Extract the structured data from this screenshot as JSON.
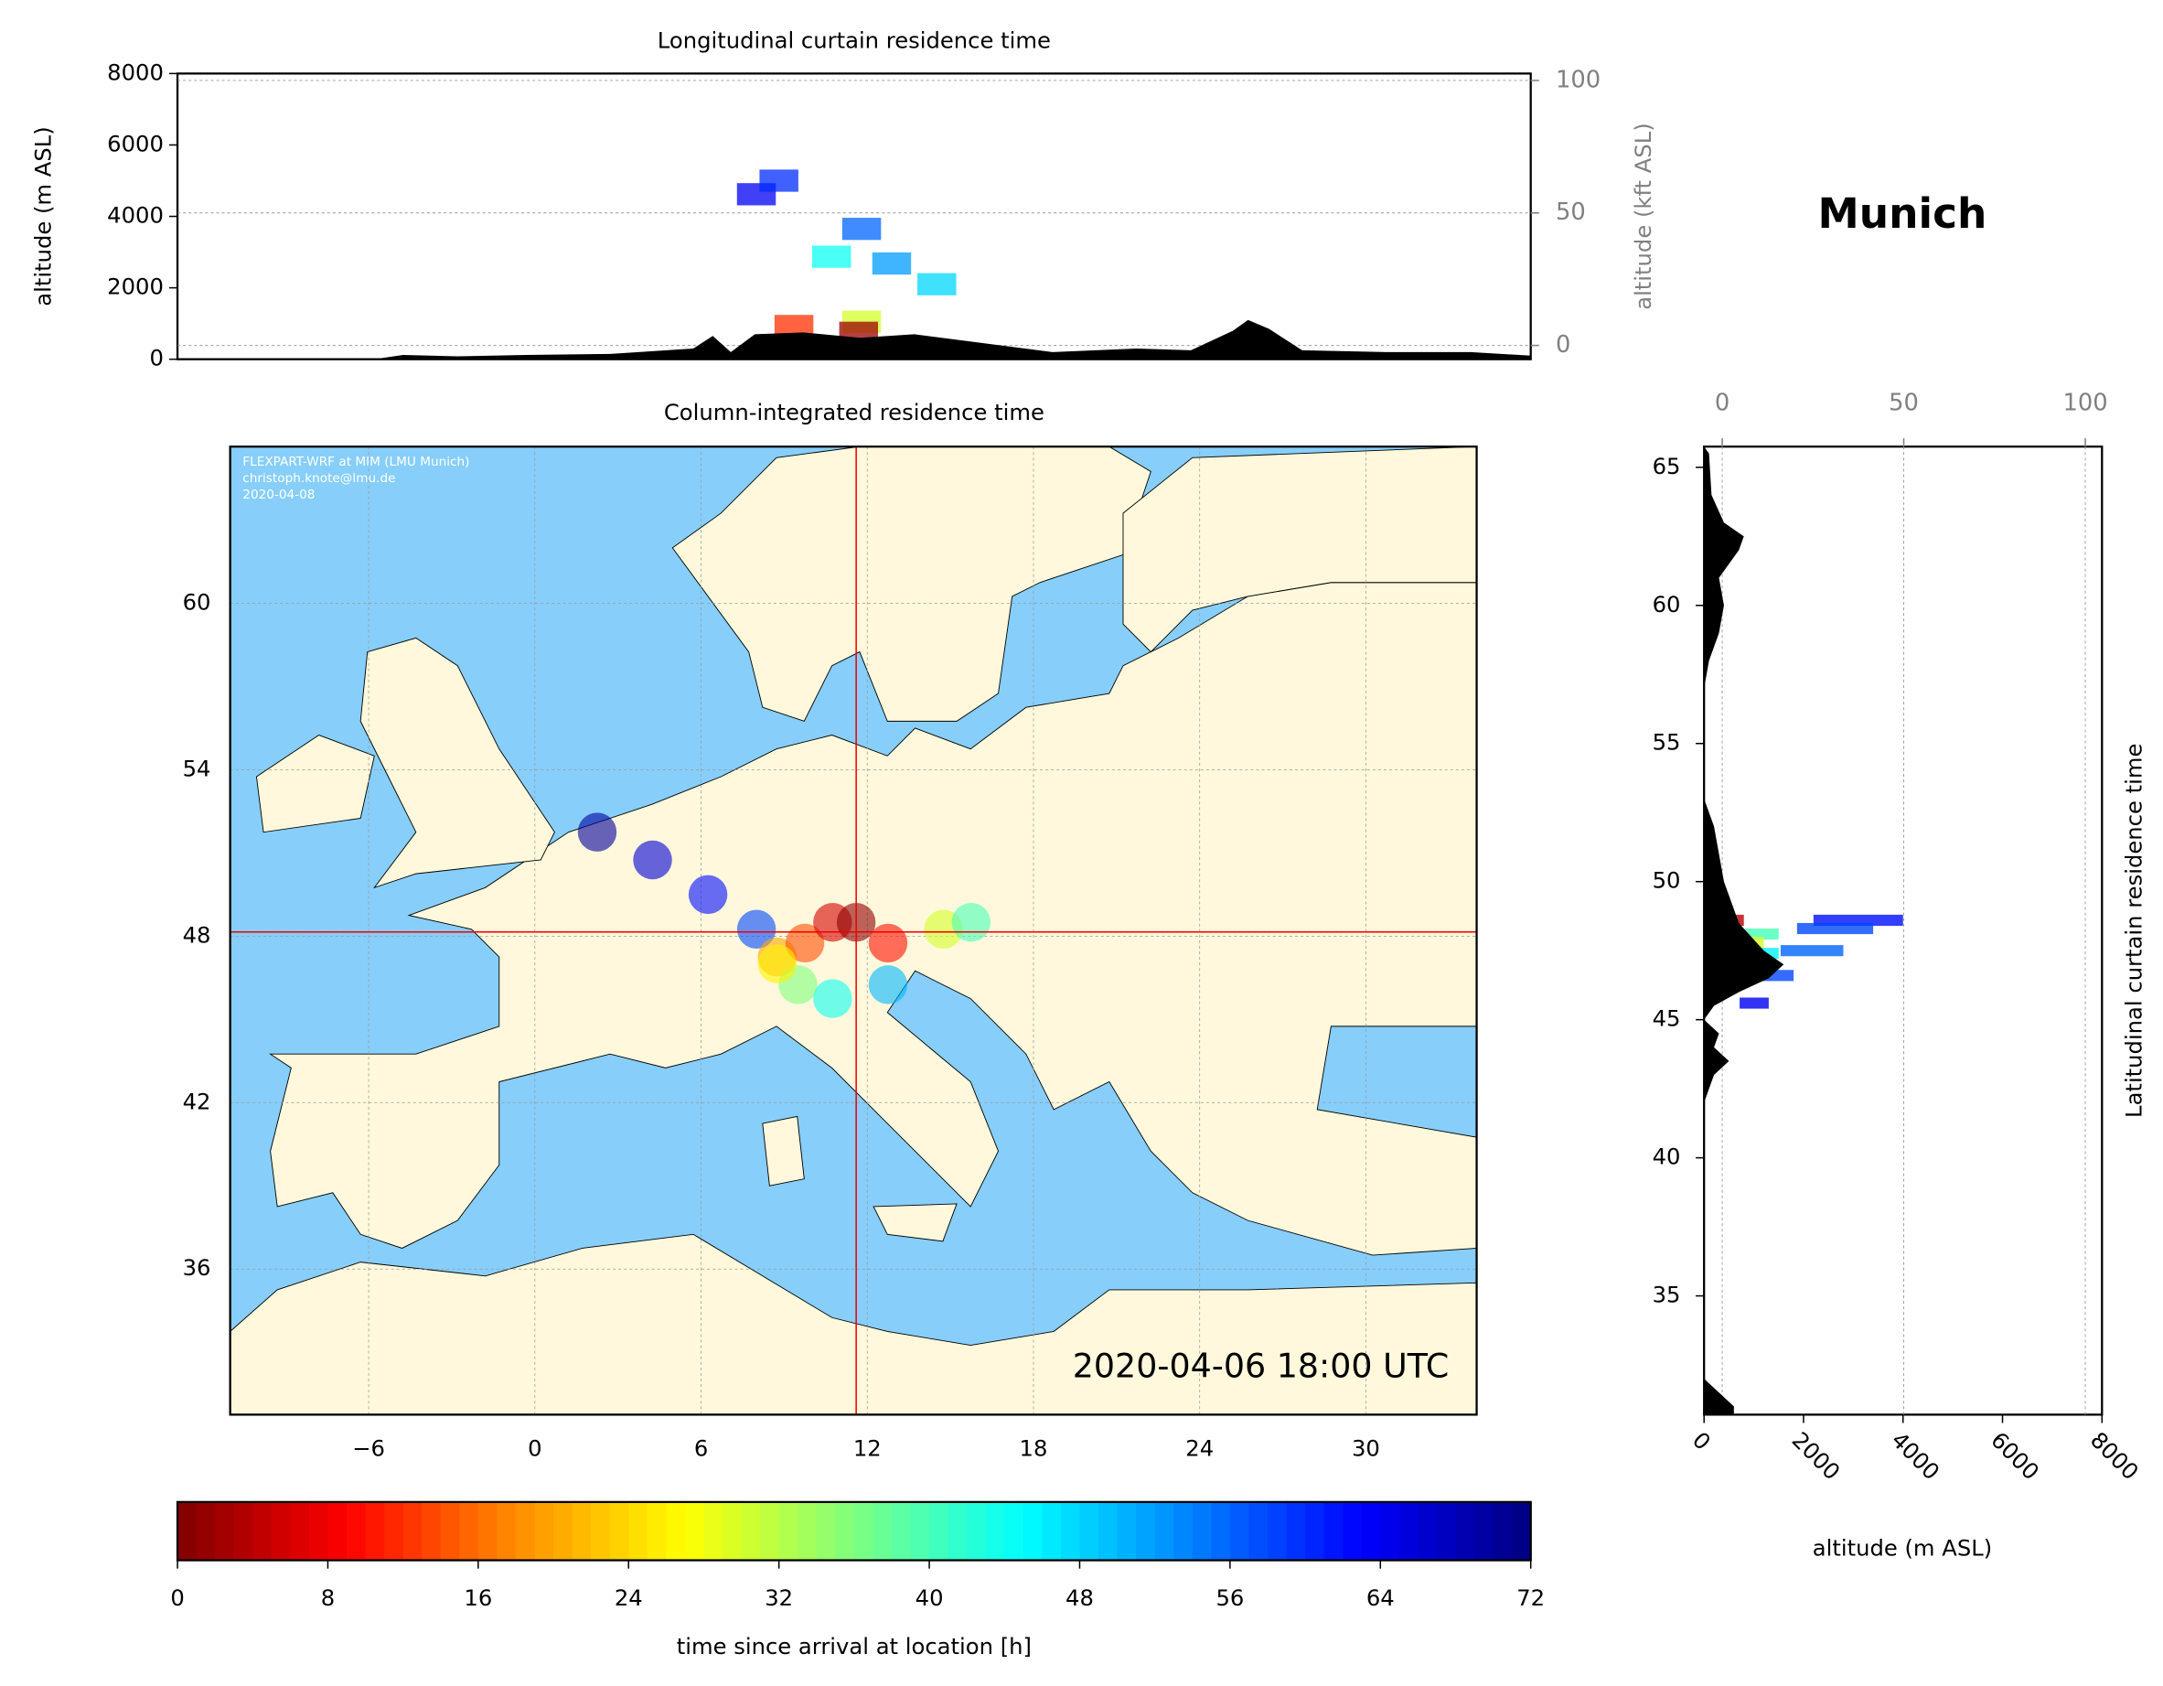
{
  "chart_data": [
    {
      "type": "lon-curtain",
      "title": "Longitudinal curtain residence time",
      "ylabel": "altitude (m ASL)",
      "y2label": "altitude (kft ASL)",
      "xlim": [
        -11,
        34
      ],
      "ylim": [
        0,
        8000
      ],
      "yticks": [
        0,
        2000,
        4000,
        6000,
        8000
      ],
      "y2lim": [
        -5.2,
        102.6
      ],
      "y2ticks": [
        0,
        50,
        100
      ],
      "grid": true,
      "terrain": {
        "x": [
          -11,
          -4.45,
          -3.5,
          -1.7,
          0.6,
          3.4,
          6.15,
          6.8,
          7.4,
          8.2,
          9.8,
          11.7,
          13.5,
          15.8,
          18.1,
          20.9,
          22.7,
          24.1,
          24.6,
          25.3,
          26.4,
          29.2,
          32,
          34
        ],
        "values": [
          0,
          0,
          120,
          80,
          120,
          150,
          300,
          650,
          200,
          700,
          750,
          600,
          700,
          450,
          200,
          300,
          250,
          800,
          1100,
          850,
          250,
          200,
          200,
          100
        ]
      },
      "plume": {
        "x": [
          8.25,
          9.0,
          11.75,
          12.75,
          14.25,
          10.75,
          11.75,
          9.5,
          11.65
        ],
        "values": [
          4620,
          5000,
          3650,
          2680,
          2100,
          2870,
          1050,
          930,
          740
        ],
        "hours": [
          64,
          60,
          56,
          52,
          48,
          44,
          30,
          12,
          2
        ]
      }
    },
    {
      "type": "map",
      "title": "Column-integrated residence time",
      "site": {
        "name": "Munich",
        "lon": 11.6,
        "lat": 48.15
      },
      "credits": [
        "FLEXPART-WRF at MIM (LMU Munich)",
        "christoph.knote@lmu.de",
        "2020-04-08"
      ],
      "timestamp": "2020-04-06 18:00 UTC",
      "xlim": [
        -11,
        34
      ],
      "ylim": [
        30.75,
        65.65
      ],
      "xticks": [
        {
          "value": -6,
          "label": "−6"
        },
        0,
        6,
        12,
        18,
        24,
        30
      ],
      "yticks": [
        36,
        42,
        48,
        54,
        60
      ],
      "grid": true,
      "plume": {
        "x": [
          2.25,
          4.25,
          6.25,
          8.0,
          8.75,
          9.75,
          10.75,
          11.6,
          12.75,
          14.75,
          15.75,
          9.5,
          10.75,
          12.75,
          8.75
        ],
        "values": [
          51.75,
          50.75,
          49.5,
          48.25,
          47.25,
          47.75,
          48.5,
          48.5,
          47.75,
          48.25,
          48.5,
          46.25,
          45.75,
          46.25,
          47.0
        ],
        "hours": [
          70,
          66,
          62,
          58,
          20,
          14,
          6,
          1,
          10,
          30,
          40,
          36,
          44,
          50,
          26
        ]
      }
    },
    {
      "type": "lat-curtain",
      "title": "Latitudinal curtain residence time",
      "xlabel": "altitude (m ASL)",
      "xlim": [
        0,
        8000
      ],
      "xticks": [
        0,
        2000,
        4000,
        6000,
        8000
      ],
      "x2lim": [
        -5,
        104.6
      ],
      "x2ticks": [
        0,
        50,
        100
      ],
      "ylim": [
        30.7,
        65.75
      ],
      "yticks": [
        35,
        40,
        45,
        50,
        55,
        60,
        65
      ],
      "grid": true,
      "terrain": {
        "y": [
          65.75,
          65.5,
          64,
          63,
          62.5,
          62,
          61,
          60,
          59,
          58,
          57,
          53,
          52,
          51,
          50,
          49.5,
          48.5,
          47.5,
          47,
          46.5,
          46,
          45.5,
          45,
          44.5,
          44,
          43.5,
          43,
          42.5,
          42,
          32,
          31.5,
          31,
          30.7
        ],
        "values": [
          0,
          100,
          150,
          400,
          800,
          700,
          300,
          400,
          300,
          100,
          0,
          0,
          200,
          300,
          400,
          500,
          700,
          1200,
          1600,
          1300,
          700,
          200,
          0,
          300,
          200,
          500,
          200,
          100,
          0,
          0,
          300,
          600,
          600
        ]
      },
      "plume": {
        "y": [
          48.6,
          48.3,
          48.1,
          47.8,
          47.5,
          48.6,
          47.4,
          46.6,
          45.6
        ],
        "values": [
          4000,
          3400,
          1500,
          1200,
          2800,
          800,
          1500,
          1800,
          1300
        ],
        "hours": [
          62,
          58,
          40,
          30,
          56,
          4,
          46,
          58,
          64
        ]
      }
    },
    {
      "type": "colorbar",
      "label": "time since arrival at location [h]",
      "lim": [
        0,
        72
      ],
      "ticks": [
        0,
        8,
        16,
        24,
        32,
        40,
        48,
        56,
        64,
        72
      ],
      "colormap": [
        "#800000",
        "#ff0000",
        "#ff8c00",
        "#ffff00",
        "#7fff7f",
        "#00ffff",
        "#0080ff",
        "#0000ff",
        "#000080"
      ]
    }
  ]
}
